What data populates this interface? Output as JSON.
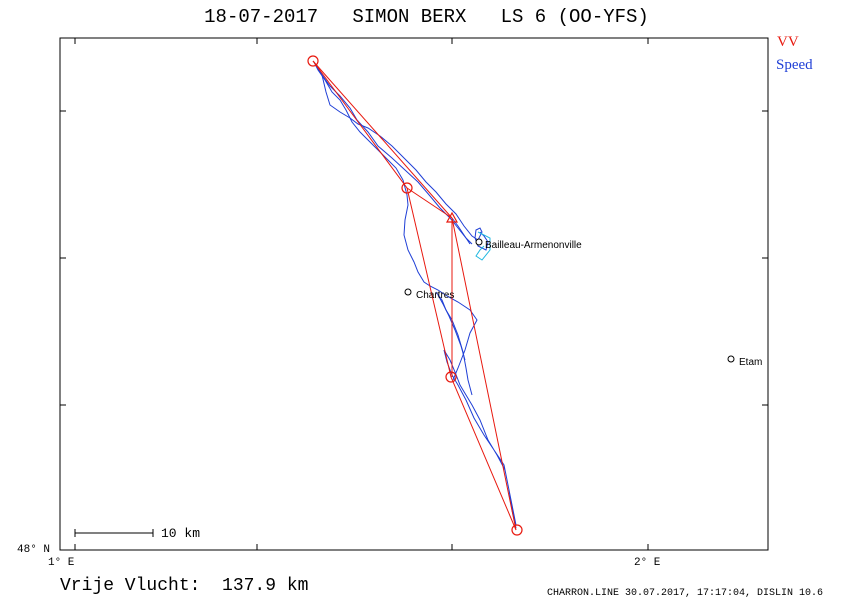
{
  "title": "18-07-2017   SIMON BERX   LS 6 (OO-YFS)",
  "legend": {
    "vv": "VV",
    "speed": "Speed"
  },
  "colors": {
    "route": "#e8190f",
    "track": "#1f3fd6",
    "track_alt": "#20b8e0",
    "frame": "#000000"
  },
  "axis_labels": {
    "lat_bottom": "48° N",
    "lon_left": "1° E",
    "lon_right": "2° E"
  },
  "scale_bar": {
    "label": "10 km"
  },
  "places": [
    {
      "name": "Chartres"
    },
    {
      "name": "Bailleau-Armenonville"
    },
    {
      "name": "Etam"
    }
  ],
  "footer": {
    "distance": "Vrije Vlucht:  137.9 km",
    "meta": "CHARRON.LINE 30.07.2017, 17:17:04, DISLIN 10.6"
  }
}
